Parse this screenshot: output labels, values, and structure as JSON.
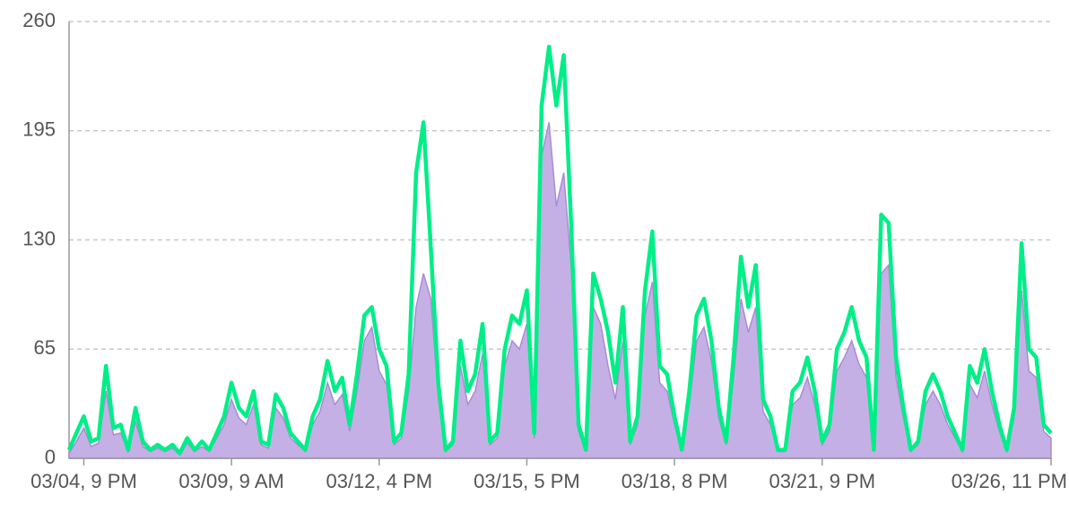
{
  "chart_data": {
    "type": "line",
    "categories": [
      null,
      null,
      "03/04, 9 PM",
      null,
      null,
      null,
      null,
      null,
      null,
      null,
      null,
      null,
      null,
      null,
      null,
      null,
      null,
      null,
      null,
      null,
      null,
      null,
      "03/09, 9 AM",
      null,
      null,
      null,
      null,
      null,
      null,
      null,
      null,
      null,
      null,
      null,
      null,
      null,
      null,
      null,
      null,
      null,
      null,
      null,
      "03/12, 4 PM",
      null,
      null,
      null,
      null,
      null,
      null,
      null,
      null,
      null,
      null,
      null,
      null,
      null,
      null,
      null,
      null,
      null,
      null,
      null,
      "03/15, 5 PM",
      null,
      null,
      null,
      null,
      null,
      null,
      null,
      null,
      null,
      null,
      null,
      null,
      null,
      null,
      null,
      null,
      null,
      null,
      null,
      "03/18, 8 PM",
      null,
      null,
      null,
      null,
      null,
      null,
      null,
      null,
      null,
      null,
      null,
      null,
      null,
      null,
      null,
      null,
      null,
      null,
      null,
      "03/21, 9 PM",
      null,
      null,
      null,
      null,
      null,
      null,
      null,
      null,
      null,
      null,
      null,
      null,
      null,
      null,
      null,
      null,
      null,
      null,
      null,
      null,
      null,
      null,
      null,
      null,
      null,
      null,
      null,
      null,
      null,
      null,
      "03/26, 11 PM"
    ],
    "series": [
      {
        "color": "#c5b0e6",
        "fill": true,
        "values": [
          3,
          10,
          18,
          7,
          9,
          40,
          14,
          15,
          4,
          22,
          7,
          4,
          6,
          4,
          6,
          2,
          9,
          4,
          7,
          4,
          12,
          20,
          35,
          24,
          20,
          32,
          8,
          6,
          30,
          24,
          12,
          8,
          4,
          20,
          28,
          45,
          32,
          38,
          16,
          40,
          70,
          78,
          52,
          44,
          8,
          12,
          40,
          90,
          110,
          95,
          36,
          4,
          8,
          55,
          32,
          40,
          62,
          8,
          12,
          55,
          70,
          65,
          80,
          12,
          180,
          200,
          150,
          170,
          115,
          16,
          4,
          90,
          80,
          55,
          35,
          70,
          8,
          20,
          85,
          105,
          45,
          40,
          20,
          4,
          32,
          70,
          78,
          58,
          24,
          8,
          48,
          95,
          75,
          90,
          28,
          20,
          4,
          4,
          32,
          36,
          48,
          32,
          8,
          16,
          52,
          60,
          70,
          56,
          48,
          4,
          110,
          115,
          48,
          24,
          4,
          8,
          32,
          40,
          32,
          20,
          12,
          4,
          44,
          36,
          52,
          32,
          16,
          4,
          24,
          100,
          52,
          48,
          16,
          12
        ]
      },
      {
        "color": "#00ee88",
        "fill": false,
        "values": [
          5,
          15,
          25,
          10,
          12,
          55,
          18,
          20,
          5,
          30,
          10,
          5,
          8,
          5,
          8,
          3,
          12,
          5,
          10,
          5,
          15,
          25,
          45,
          30,
          25,
          40,
          10,
          8,
          38,
          30,
          15,
          10,
          5,
          25,
          35,
          58,
          40,
          48,
          20,
          50,
          85,
          90,
          65,
          55,
          10,
          15,
          50,
          170,
          200,
          125,
          45,
          5,
          10,
          70,
          40,
          50,
          80,
          10,
          15,
          65,
          85,
          80,
          100,
          15,
          210,
          245,
          210,
          240,
          140,
          20,
          5,
          110,
          95,
          75,
          45,
          90,
          10,
          25,
          100,
          135,
          55,
          50,
          25,
          5,
          40,
          85,
          95,
          70,
          30,
          10,
          60,
          120,
          90,
          115,
          35,
          25,
          5,
          5,
          40,
          45,
          60,
          40,
          10,
          20,
          65,
          75,
          90,
          70,
          60,
          5,
          145,
          140,
          60,
          30,
          5,
          10,
          40,
          50,
          40,
          25,
          15,
          5,
          55,
          45,
          65,
          40,
          20,
          5,
          30,
          128,
          65,
          60,
          20,
          15
        ]
      }
    ],
    "ylim": [
      0,
      260
    ],
    "yticks": [
      0,
      65,
      130,
      195,
      260
    ],
    "grid": true
  }
}
